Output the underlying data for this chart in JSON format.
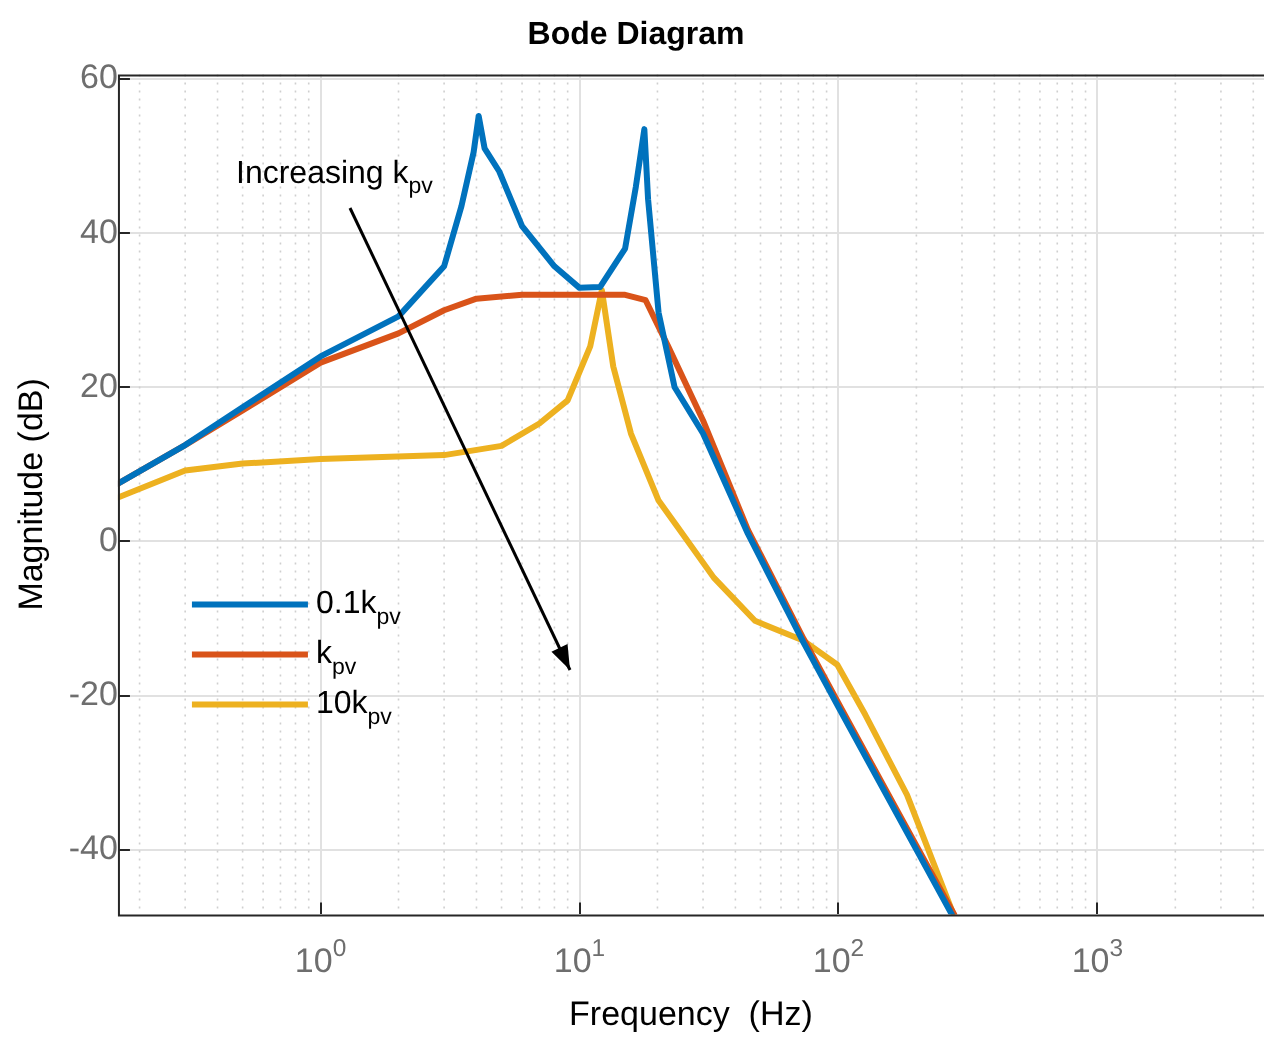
{
  "chart_data": {
    "type": "line",
    "title": "Bode Diagram",
    "xlabel": "Frequency  (Hz)",
    "ylabel": "Magnitude (dB)",
    "log": "x",
    "grid": true,
    "legend": "bottom left",
    "line_style": "solid",
    "marker": "none",
    "xlim": [
      0.165,
      4400
    ],
    "ylim": [
      -48.4,
      60.6
    ],
    "xticks": [
      {
        "value": 1,
        "label": "10$^{0}$"
      },
      {
        "value": 10,
        "label": "10$^{1}$"
      },
      {
        "value": 100,
        "label": "10$^{2}$"
      },
      {
        "value": 1000,
        "label": "10$^{3}$"
      }
    ],
    "yticks": [
      -40,
      -20,
      0,
      20,
      40,
      60
    ],
    "annotations": [
      "Increasing k$_{pv}$"
    ],
    "series": [
      {
        "name": "0.1k$_{pv}$",
        "color": "#0072bd",
        "x": [
          0.165,
          0.3,
          0.5,
          1,
          2,
          3,
          3.5,
          3.9,
          4.08,
          4.3,
          4.9,
          6,
          8,
          10,
          12,
          15,
          16.5,
          17.8,
          18.4,
          20.2,
          23.3,
          30,
          44.7,
          73.5,
          100,
          200,
          274
        ],
        "values": [
          7.5,
          12.5,
          17.4,
          24,
          29.2,
          35.7,
          43.5,
          50.5,
          55.2,
          51,
          48,
          40.9,
          35.7,
          32.9,
          33,
          38,
          46,
          53.5,
          44.4,
          29.7,
          20,
          14,
          1,
          -13.2,
          -21.5,
          -40,
          -48.4
        ]
      },
      {
        "name": "k$_{pv}$",
        "color": "#d95319",
        "x": [
          0.165,
          0.3,
          0.5,
          1,
          2,
          3,
          4,
          6,
          10,
          15,
          18,
          22,
          30,
          44.7,
          73.5,
          100,
          200,
          280
        ],
        "values": [
          7.5,
          12.5,
          17,
          23.2,
          27,
          30,
          31.5,
          32,
          32,
          32,
          31.3,
          25.3,
          15.7,
          1.5,
          -12.7,
          -21,
          -39.5,
          -48.4
        ]
      },
      {
        "name": "10k$_{pv}$",
        "color": "#edb120",
        "x": [
          0.165,
          0.3,
          0.5,
          1,
          3,
          5,
          7,
          9,
          11,
          12.2,
          13.5,
          15.8,
          20.2,
          24,
          33,
          47.6,
          73.5,
          99,
          127,
          184,
          278
        ],
        "values": [
          5.7,
          9.2,
          10.1,
          10.7,
          11.2,
          12.4,
          15.3,
          18.3,
          25.3,
          32.6,
          22.7,
          14,
          5.3,
          1.8,
          -4.7,
          -10.3,
          -12.9,
          -16,
          -22.5,
          -32.9,
          -48.4
        ]
      }
    ]
  }
}
